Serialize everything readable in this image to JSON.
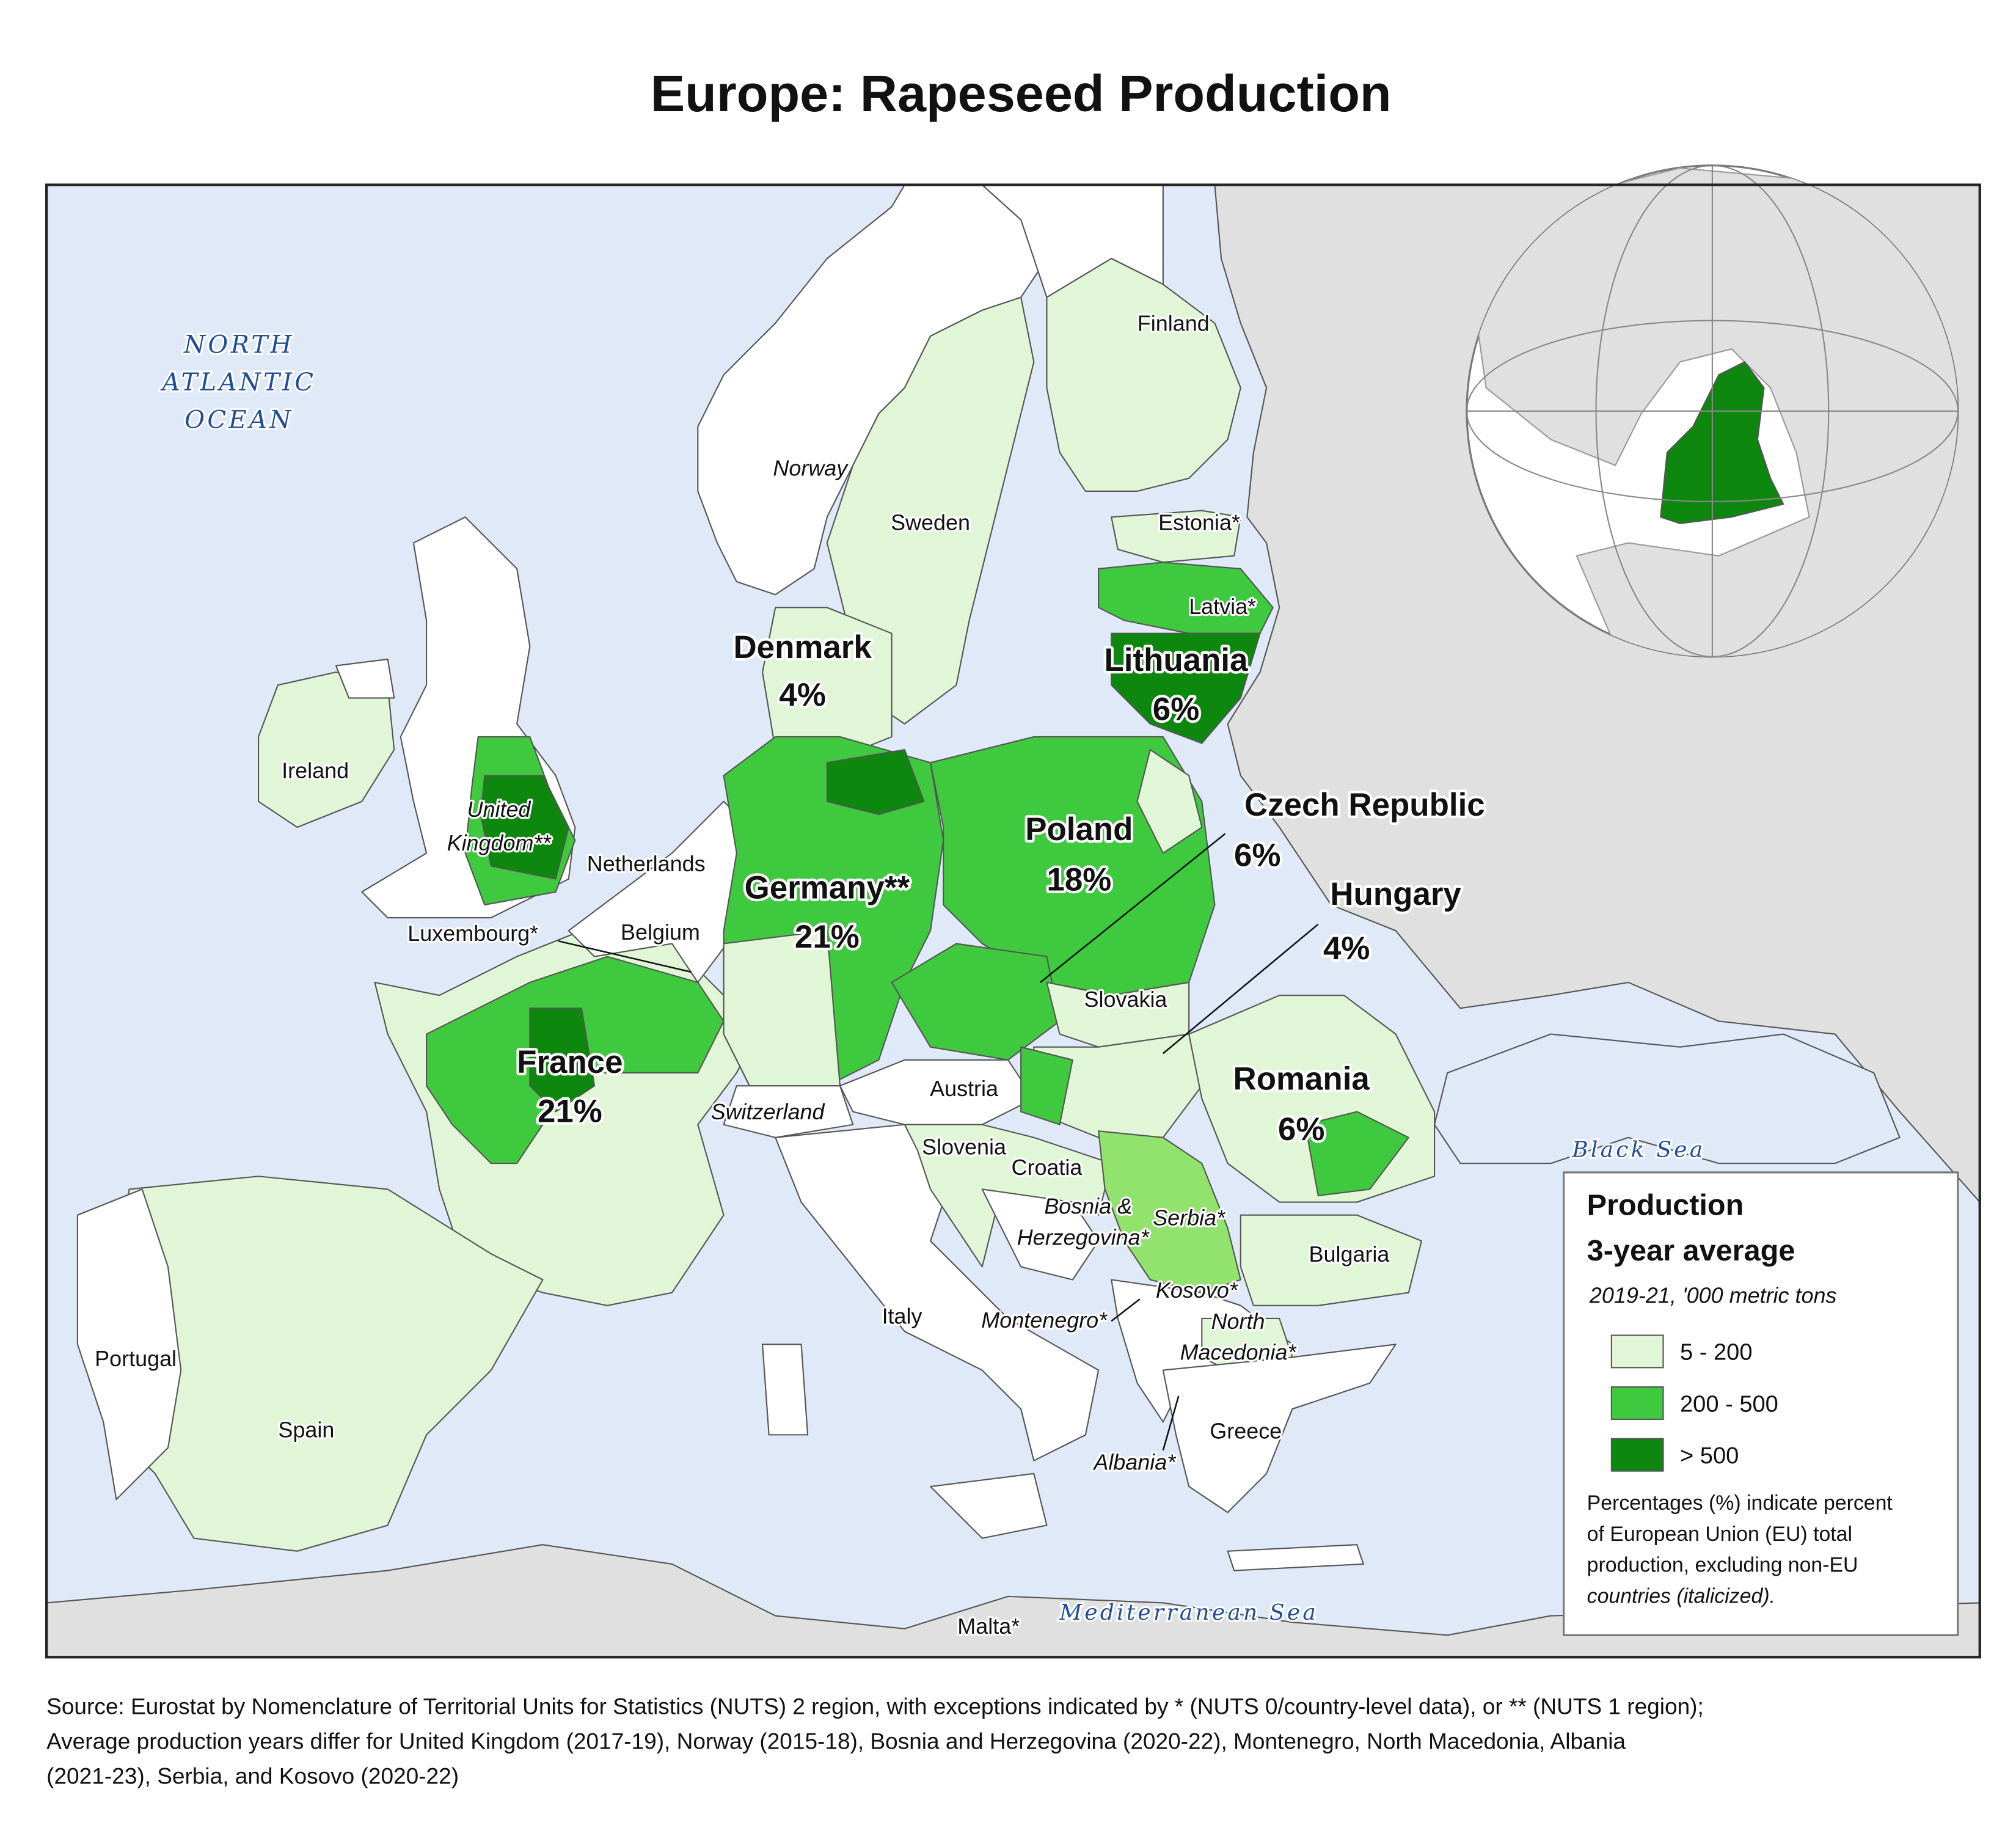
{
  "title": "Europe: Rapeseed Production",
  "water_labels": {
    "ocean": [
      "NORTH",
      "ATLANTIC",
      "OCEAN"
    ],
    "black_sea": "Black Sea",
    "mediterranean": "Mediterranean Sea"
  },
  "major_labels": [
    {
      "name": "Denmark",
      "share": "4%"
    },
    {
      "name": "Lithuania",
      "share": "6%"
    },
    {
      "name": "Czech Republic",
      "share": "6%"
    },
    {
      "name": "Poland",
      "share": "18%"
    },
    {
      "name": "Germany**",
      "share": "21%"
    },
    {
      "name": "Hungary",
      "share": "4%"
    },
    {
      "name": "France",
      "share": "21%"
    },
    {
      "name": "Romania",
      "share": "6%"
    }
  ],
  "country_labels": {
    "finland": "Finland",
    "norway": "Norway",
    "sweden": "Sweden",
    "estonia": "Estonia*",
    "latvia": "Latvia*",
    "ireland": "Ireland",
    "uk": [
      "United",
      "Kingdom**"
    ],
    "netherlands": "Netherlands",
    "luxembourg": "Luxembourg*",
    "belgium": "Belgium",
    "slovakia": "Slovakia",
    "austria": "Austria",
    "switzerland": "Switzerland",
    "slovenia": "Slovenia",
    "croatia": "Croatia",
    "bosnia": [
      "Bosnia &",
      "Herzegovina*"
    ],
    "serbia": "Serbia*",
    "bulgaria": "Bulgaria",
    "kosovo": "Kosovo*",
    "north_macedonia": [
      "North",
      "Macedonia*"
    ],
    "montenegro": "Montenegro*",
    "italy": "Italy",
    "portugal": "Portugal",
    "spain": "Spain",
    "albania": "Albania*",
    "greece": "Greece",
    "malta": "Malta*"
  },
  "legend": {
    "title": [
      "Production",
      "3-year average"
    ],
    "subtitle": "2019-21, '000 metric tons",
    "items": [
      {
        "label": "5 - 200",
        "color": "#e1f6d6"
      },
      {
        "label": "200 - 500",
        "color": "#3ec93e"
      },
      {
        "label": "> 500",
        "color": "#0e870e"
      }
    ],
    "note": [
      "Percentages (%) indicate percent",
      "of European Union (EU) total",
      "production, excluding non-EU",
      "countries (italicized)."
    ]
  },
  "source": [
    "Source: Eurostat by Nomenclature of Territorial Units for Statistics (NUTS) 2 region, with exceptions indicated by * (NUTS 0/country-level data), or ** (NUTS 1 region);",
    "Average production years differ for United Kingdom (2017-19), Norway (2015-18), Bosnia and Herzegovina (2020-22), Montenegro, North Macedonia, Albania",
    "(2021-23), Serbia, and Kosovo (2020-22)"
  ]
}
